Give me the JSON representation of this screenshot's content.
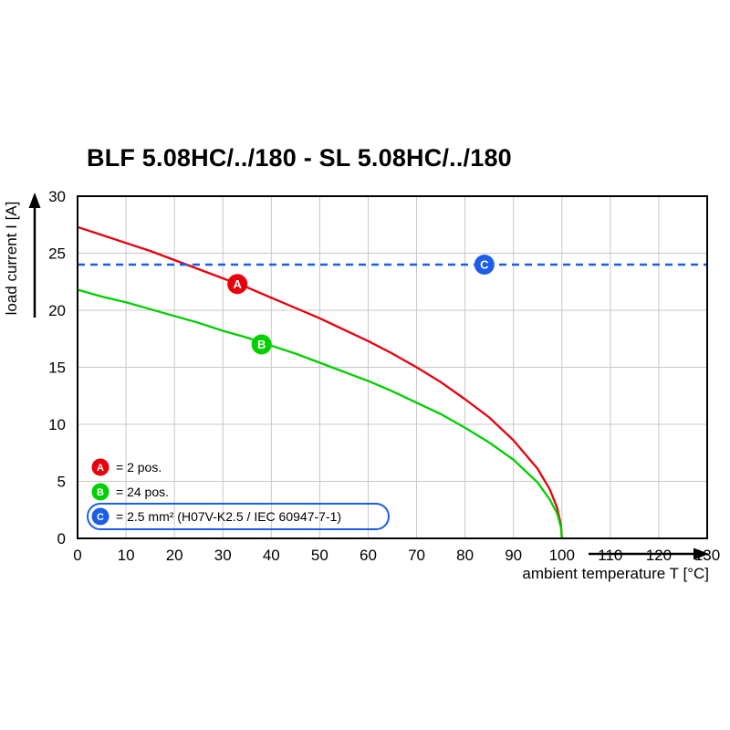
{
  "title": "BLF 5.08HC/../180 - SL 5.08HC/../180",
  "colors": {
    "series_a": "#e8000d",
    "series_b": "#00cf00",
    "series_c": "#1c5ee8",
    "grid": "#c8c8c8",
    "axis": "#000000"
  },
  "chart_data": {
    "type": "line",
    "title": "BLF 5.08HC/../180 - SL 5.08HC/../180",
    "xlabel": "ambient temperature T [°C]",
    "ylabel": "load current I [A]",
    "xlim": [
      0,
      130
    ],
    "ylim": [
      0,
      30
    ],
    "x_ticks": [
      0,
      10,
      20,
      30,
      40,
      50,
      60,
      70,
      80,
      90,
      100,
      110,
      120,
      130
    ],
    "y_ticks": [
      0,
      5,
      10,
      15,
      20,
      25,
      30
    ],
    "grid": true,
    "legend_position": "bottom-left inside plot",
    "series": [
      {
        "name": "A",
        "color": "#e8000d",
        "style": "solid",
        "x": [
          0,
          5,
          10,
          15,
          20,
          25,
          30,
          35,
          40,
          45,
          50,
          55,
          60,
          65,
          70,
          75,
          80,
          85,
          90,
          95,
          97.5,
          99,
          99.8,
          100
        ],
        "y": [
          27.3,
          26.6,
          25.9,
          25.2,
          24.4,
          23.6,
          22.8,
          22.0,
          21.1,
          20.2,
          19.3,
          18.3,
          17.3,
          16.2,
          15.0,
          13.7,
          12.2,
          10.6,
          8.6,
          6.1,
          4.3,
          2.7,
          1.2,
          0
        ]
      },
      {
        "name": "B",
        "color": "#00cf00",
        "style": "solid",
        "x": [
          0,
          5,
          10,
          15,
          20,
          25,
          30,
          35,
          40,
          45,
          50,
          55,
          60,
          65,
          70,
          75,
          80,
          85,
          90,
          95,
          97.5,
          99,
          99.8,
          100
        ],
        "y": [
          21.8,
          21.2,
          20.7,
          20.1,
          19.5,
          18.9,
          18.2,
          17.6,
          16.9,
          16.2,
          15.4,
          14.6,
          13.8,
          12.9,
          11.9,
          10.9,
          9.7,
          8.4,
          6.9,
          4.9,
          3.4,
          2.2,
          1.0,
          0
        ]
      },
      {
        "name": "C",
        "color": "#1c5ee8",
        "style": "dashed",
        "x": [
          0,
          130
        ],
        "y": [
          24,
          24
        ]
      }
    ],
    "markers": [
      {
        "label": "A",
        "x": 33,
        "y": 22.3,
        "color": "#e8000d"
      },
      {
        "label": "B",
        "x": 38,
        "y": 17.0,
        "color": "#00cf00"
      },
      {
        "label": "C",
        "x": 84,
        "y": 24.0,
        "color": "#1c5ee8"
      }
    ],
    "legend": [
      {
        "label": "A",
        "color": "#e8000d",
        "text": "= 2 pos.",
        "boxed": false
      },
      {
        "label": "B",
        "color": "#00cf00",
        "text": "= 24 pos.",
        "boxed": false
      },
      {
        "label": "C",
        "color": "#1c5ee8",
        "text": "= 2.5 mm² (H07V-K2.5 / IEC 60947-7-1)",
        "boxed": true
      }
    ]
  }
}
